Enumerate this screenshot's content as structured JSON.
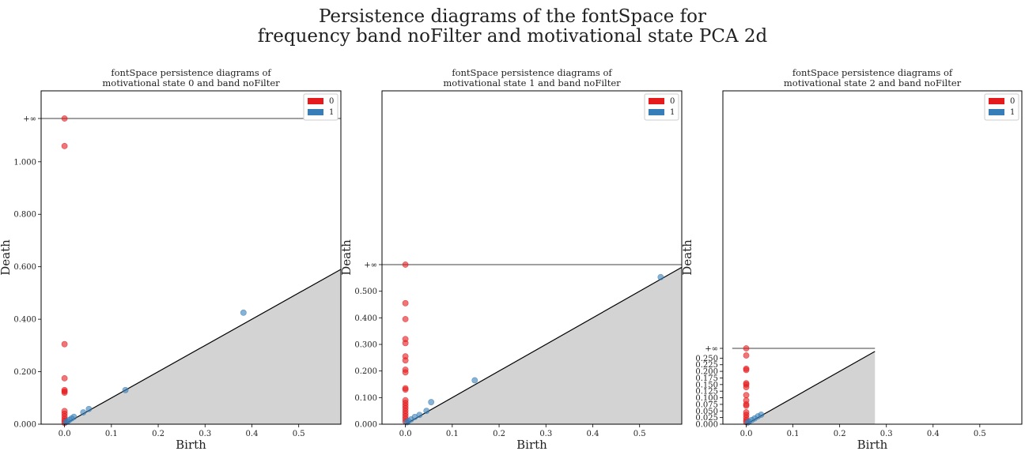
{
  "figure": {
    "title_line1": "Persistence diagrams of the fontSpace for",
    "title_line2": "frequency band noFilter and motivational state PCA 2d"
  },
  "colors": {
    "h0": "#e41a1c",
    "h1": "#377eb8",
    "diag_fill": "#d3d3d3"
  },
  "chart_data": [
    {
      "type": "scatter",
      "title_line1": "fontSpace persistence diagrams of",
      "title_line2": "motivational state 0 and band noFilter",
      "xlabel": "Birth",
      "ylabel": "Death",
      "xlim": [
        -0.05,
        0.59
      ],
      "ylim": [
        0,
        1.27
      ],
      "inf_value": 1.165,
      "inf_label": "+∞",
      "x_ticks": [
        0.0,
        0.1,
        0.2,
        0.3,
        0.4,
        0.5
      ],
      "x_tick_labels": [
        "0.0",
        "0.1",
        "0.2",
        "0.3",
        "0.4",
        "0.5"
      ],
      "y_ticks": [
        0.0,
        0.2,
        0.4,
        0.6,
        0.8,
        1.0
      ],
      "y_tick_labels": [
        "0.000",
        "0.200",
        "0.400",
        "0.600",
        "0.800",
        "1.000"
      ],
      "legend": [
        "0",
        "1"
      ],
      "legend_position": "top-right",
      "series": [
        {
          "name": "0",
          "points": [
            [
              0,
              1.165
            ],
            [
              0,
              1.06
            ],
            [
              0,
              0.305
            ],
            [
              0,
              0.175
            ],
            [
              0,
              0.13
            ],
            [
              0,
              0.125
            ],
            [
              0,
              0.12
            ],
            [
              0,
              0.05
            ],
            [
              0,
              0.04
            ],
            [
              0,
              0.03
            ],
            [
              0,
              0.02
            ],
            [
              0,
              0.012
            ],
            [
              0,
              0.005
            ]
          ]
        },
        {
          "name": "1",
          "points": [
            [
              0.382,
              0.425
            ],
            [
              0.13,
              0.13
            ],
            [
              0.052,
              0.058
            ],
            [
              0.04,
              0.045
            ],
            [
              0.02,
              0.028
            ],
            [
              0.015,
              0.022
            ],
            [
              0.01,
              0.016
            ],
            [
              0.006,
              0.011
            ],
            [
              0.003,
              0.008
            ]
          ]
        }
      ]
    },
    {
      "type": "scatter",
      "title_line1": "fontSpace persistence diagrams of",
      "title_line2": "motivational state 1 and band noFilter",
      "xlabel": "Birth",
      "ylabel": "Death",
      "xlim": [
        -0.05,
        0.59
      ],
      "ylim": [
        0,
        1.27
      ],
      "inf_value": 0.6,
      "inf_label": "+∞",
      "x_ticks": [
        0.0,
        0.1,
        0.2,
        0.3,
        0.4,
        0.5
      ],
      "x_tick_labels": [
        "0.0",
        "0.1",
        "0.2",
        "0.3",
        "0.4",
        "0.5"
      ],
      "y_ticks": [
        0.0,
        0.1,
        0.2,
        0.3,
        0.4,
        0.5
      ],
      "y_tick_labels": [
        "0.000",
        "0.100",
        "0.200",
        "0.300",
        "0.400",
        "0.500"
      ],
      "legend": [
        "0",
        "1"
      ],
      "legend_position": "top-right",
      "series": [
        {
          "name": "0",
          "points": [
            [
              0,
              0.6
            ],
            [
              0,
              0.455
            ],
            [
              0,
              0.395
            ],
            [
              0,
              0.32
            ],
            [
              0,
              0.305
            ],
            [
              0,
              0.255
            ],
            [
              0,
              0.24
            ],
            [
              0,
              0.205
            ],
            [
              0,
              0.195
            ],
            [
              0,
              0.135
            ],
            [
              0,
              0.13
            ],
            [
              0,
              0.09
            ],
            [
              0,
              0.08
            ],
            [
              0,
              0.07
            ],
            [
              0,
              0.06
            ],
            [
              0,
              0.05
            ],
            [
              0,
              0.04
            ],
            [
              0,
              0.03
            ],
            [
              0,
              0.02
            ],
            [
              0,
              0.01
            ]
          ]
        },
        {
          "name": "1",
          "points": [
            [
              0.545,
              0.553
            ],
            [
              0.148,
              0.165
            ],
            [
              0.055,
              0.083
            ],
            [
              0.045,
              0.05
            ],
            [
              0.03,
              0.035
            ],
            [
              0.02,
              0.027
            ],
            [
              0.012,
              0.018
            ],
            [
              0.006,
              0.012
            ],
            [
              0.003,
              0.007
            ]
          ]
        }
      ]
    },
    {
      "type": "scatter",
      "title_line1": "fontSpace persistence diagrams of",
      "title_line2": "motivational state 2 and band noFilter",
      "xlabel": "Birth",
      "ylabel": "Death",
      "xlim": [
        -0.05,
        0.59
      ],
      "ylim": [
        0,
        1.27
      ],
      "inf_value": 0.287,
      "inf_label": "+∞",
      "x_ticks": [
        0.0,
        0.1,
        0.2,
        0.3,
        0.4,
        0.5
      ],
      "x_tick_labels": [
        "0.0",
        "0.1",
        "0.2",
        "0.3",
        "0.4",
        "0.5"
      ],
      "y_ticks": [
        0.0,
        0.025,
        0.05,
        0.075,
        0.1,
        0.125,
        0.15,
        0.175,
        0.2,
        0.225,
        0.25
      ],
      "y_tick_labels": [
        "0.000",
        "0.025",
        "0.050",
        "0.075",
        "0.100",
        "0.125",
        "0.150",
        "0.175",
        "0.200",
        "0.225",
        "0.250"
      ],
      "legend": [
        "0",
        "1"
      ],
      "legend_position": "top-right",
      "series": [
        {
          "name": "0",
          "points": [
            [
              0,
              0.287
            ],
            [
              0,
              0.26
            ],
            [
              0,
              0.21
            ],
            [
              0,
              0.205
            ],
            [
              0,
              0.155
            ],
            [
              0,
              0.15
            ],
            [
              0,
              0.14
            ],
            [
              0,
              0.11
            ],
            [
              0,
              0.09
            ],
            [
              0,
              0.075
            ],
            [
              0,
              0.07
            ],
            [
              0,
              0.045
            ],
            [
              0,
              0.035
            ],
            [
              0,
              0.025
            ],
            [
              0,
              0.015
            ],
            [
              0,
              0.008
            ]
          ]
        },
        {
          "name": "1",
          "points": [
            [
              0.032,
              0.036
            ],
            [
              0.025,
              0.03
            ],
            [
              0.018,
              0.022
            ],
            [
              0.012,
              0.016
            ],
            [
              0.006,
              0.01
            ],
            [
              0.003,
              0.006
            ]
          ]
        }
      ]
    }
  ]
}
